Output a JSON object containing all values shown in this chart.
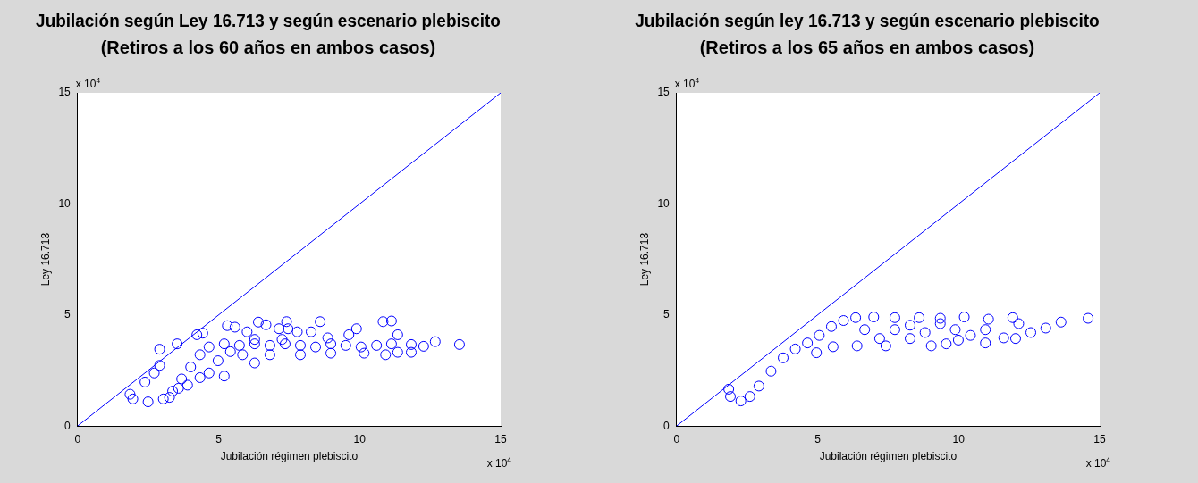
{
  "chart_data": [
    {
      "type": "scatter",
      "title": "Jubilación según Ley 16.713 y según escenario plebiscito",
      "subtitle": "(Retiros a los 60 años en ambos casos)",
      "xlabel": "Jubilación régimen plebiscito",
      "ylabel": "Ley 16.713",
      "annotations": [
        "x 10$^{4}$",
        "x 10$^{4}$"
      ],
      "xlim": [
        0,
        15
      ],
      "ylim": [
        0,
        15
      ],
      "xticks": [
        0,
        5,
        10,
        15
      ],
      "yticks": [
        0,
        5,
        10,
        15
      ],
      "grid": false,
      "legend": false,
      "marker": "circle",
      "series": [
        {
          "type": "scatter",
          "color": "#0000ff",
          "x": [
            1.86,
            1.96,
            2.5,
            3.04,
            3.37,
            3.69,
            4.01,
            4.34,
            4.66,
            5.2,
            5.74,
            6.28,
            6.82,
            7.36,
            7.9,
            8.44,
            8.98,
            9.51,
            10.05,
            10.6,
            11.13,
            2.91,
            3.53,
            4.23,
            4.44,
            5.31,
            5.58,
            6.41,
            6.68,
            7.41,
            7.46,
            8.6,
            9.89,
            10.83,
            11.13,
            11.35,
            11.83,
            12.27,
            12.68,
            13.54,
            5.2,
            6.28,
            4.66,
            4.34,
            3.26,
            2.39,
            2.72,
            2.91,
            3.58,
            3.9,
            11.35,
            11.83,
            7.9,
            8.98,
            6.01,
            7.79,
            8.28,
            7.14,
            9.62,
            6.28,
            7.25,
            8.87,
            5.85,
            6.82,
            10.16,
            10.92,
            4.98,
            5.42
          ],
          "values": [
            1.43,
            1.22,
            1.09,
            1.22,
            1.57,
            2.12,
            2.66,
            3.21,
            3.56,
            3.7,
            3.63,
            3.7,
            3.63,
            3.7,
            3.63,
            3.56,
            3.7,
            3.63,
            3.56,
            3.63,
            3.7,
            3.46,
            3.7,
            4.11,
            4.18,
            4.52,
            4.45,
            4.68,
            4.56,
            4.7,
            4.38,
            4.7,
            4.38,
            4.7,
            4.73,
            4.11,
            3.67,
            3.59,
            3.8,
            3.67,
            2.25,
            2.84,
            2.39,
            2.18,
            1.29,
            1.98,
            2.39,
            2.73,
            1.7,
            1.84,
            3.32,
            3.32,
            3.21,
            3.28,
            4.24,
            4.24,
            4.24,
            4.38,
            4.11,
            3.9,
            3.9,
            3.97,
            3.21,
            3.21,
            3.28,
            3.21,
            2.94,
            3.35
          ]
        },
        {
          "type": "line",
          "color": "#0000ff",
          "marker": "none",
          "x": [
            0,
            15
          ],
          "values": [
            0,
            15
          ]
        }
      ]
    },
    {
      "type": "scatter",
      "title": "Jubilación según ley 16.713 y según escenario plebiscito",
      "subtitle": "(Retiros a los 65 años en ambos casos)",
      "xlabel": "Jubilación régimen plebiscito",
      "ylabel": "Ley 16.713",
      "annotations": [
        "x 10$^{4}$",
        "x 10$^{4}$"
      ],
      "xlim": [
        0,
        15
      ],
      "ylim": [
        0,
        15
      ],
      "xticks": [
        0,
        5,
        10,
        15
      ],
      "yticks": [
        0,
        5,
        10,
        15
      ],
      "grid": false,
      "legend": false,
      "marker": "circle",
      "series": [
        {
          "type": "scatter",
          "color": "#0000ff",
          "x": [
            1.85,
            1.91,
            2.28,
            2.6,
            2.92,
            3.35,
            3.78,
            4.21,
            4.64,
            5.06,
            5.49,
            5.92,
            6.35,
            6.99,
            7.74,
            8.6,
            9.35,
            10.2,
            11.06,
            11.92,
            12.02,
            12.56,
            13.09,
            13.63,
            14.59,
            4.96,
            5.55,
            6.4,
            7.2,
            7.42,
            8.28,
            9.03,
            9.56,
            9.99,
            10.95,
            11.6,
            6.67,
            7.74,
            8.81,
            9.88,
            10.95,
            10.42,
            8.28,
            9.35,
            12.13
          ],
          "values": [
            1.66,
            1.33,
            1.13,
            1.33,
            1.8,
            2.47,
            3.07,
            3.47,
            3.74,
            4.08,
            4.48,
            4.75,
            4.88,
            4.91,
            4.88,
            4.88,
            4.85,
            4.91,
            4.81,
            4.88,
            3.94,
            4.21,
            4.41,
            4.68,
            4.85,
            3.3,
            3.57,
            3.61,
            3.94,
            3.61,
            3.94,
            3.61,
            3.7,
            3.87,
            3.74,
            3.97,
            4.34,
            4.34,
            4.21,
            4.34,
            4.34,
            4.08,
            4.54,
            4.61,
            4.61
          ]
        },
        {
          "type": "line",
          "color": "#0000ff",
          "marker": "none",
          "x": [
            0,
            15
          ],
          "values": [
            0,
            15
          ]
        }
      ]
    }
  ]
}
